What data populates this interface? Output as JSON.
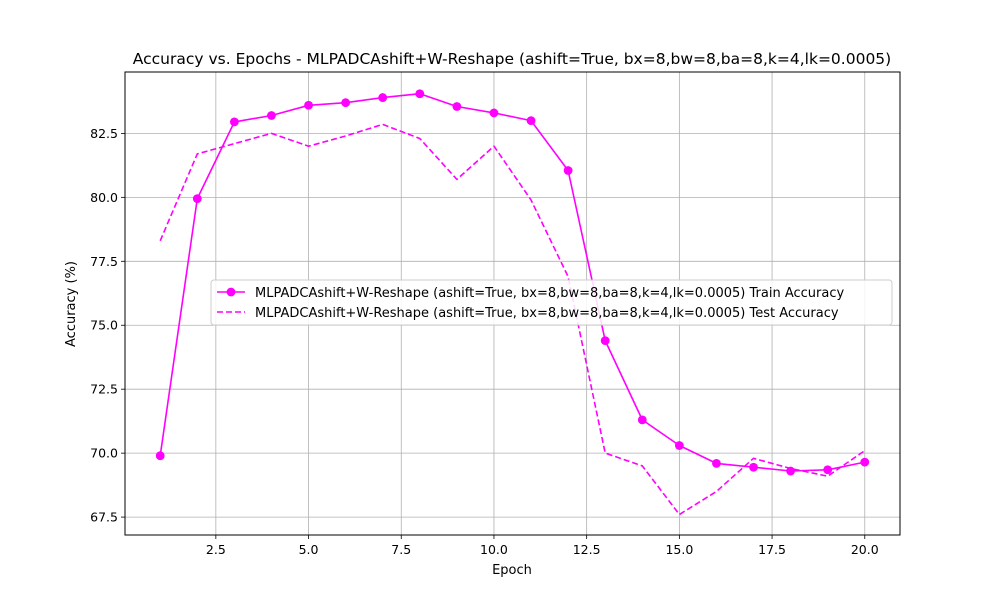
{
  "chart_data": {
    "type": "line",
    "title": "Accuracy vs. Epochs - MLPADCAshift+W-Reshape (ashift=True, bx=8,bw=8,ba=8,k=4,lk=0.0005)",
    "xlabel": "Epoch",
    "ylabel": "Accuracy (%)",
    "xlim": [
      0.05,
      20.95
    ],
    "ylim": [
      66.8,
      84.9
    ],
    "xticks": [
      2.5,
      5.0,
      7.5,
      10.0,
      12.5,
      15.0,
      17.5,
      20.0
    ],
    "xtick_labels": [
      "2.5",
      "5.0",
      "7.5",
      "10.0",
      "12.5",
      "15.0",
      "17.5",
      "20.0"
    ],
    "yticks": [
      67.5,
      70.0,
      72.5,
      75.0,
      77.5,
      80.0,
      82.5
    ],
    "ytick_labels": [
      "67.5",
      "70.0",
      "72.5",
      "75.0",
      "77.5",
      "80.0",
      "82.5"
    ],
    "grid": true,
    "legend_position": "center-right",
    "x": [
      1,
      2,
      3,
      4,
      5,
      6,
      7,
      8,
      9,
      10,
      11,
      12,
      13,
      14,
      15,
      16,
      17,
      18,
      19,
      20
    ],
    "series": [
      {
        "name": "MLPADCAshift+W-Reshape (ashift=True, bx=8,bw=8,ba=8,k=4,lk=0.0005) Train Accuracy",
        "style": "solid-marker",
        "color": "#ff00ff",
        "values": [
          69.9,
          79.95,
          82.95,
          83.2,
          83.6,
          83.7,
          83.9,
          84.05,
          83.55,
          83.3,
          83.0,
          81.05,
          74.4,
          71.3,
          70.3,
          69.6,
          69.45,
          69.3,
          69.35,
          69.65
        ]
      },
      {
        "name": "MLPADCAshift+W-Reshape (ashift=True, bx=8,bw=8,ba=8,k=4,lk=0.0005) Test Accuracy",
        "style": "dashed",
        "color": "#ff00ff",
        "values": [
          78.3,
          81.7,
          82.1,
          82.5,
          82.0,
          82.4,
          82.85,
          82.3,
          80.7,
          82.0,
          79.9,
          76.9,
          70.0,
          69.5,
          67.6,
          68.5,
          69.8,
          69.4,
          69.1,
          70.1
        ]
      }
    ]
  }
}
